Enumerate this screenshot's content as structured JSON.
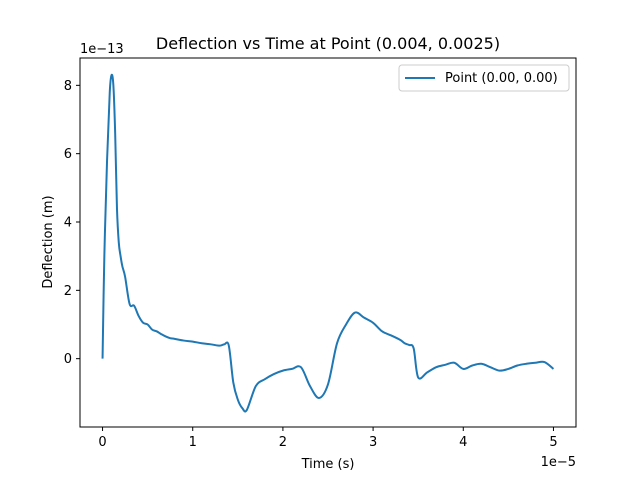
{
  "chart_data": {
    "type": "line",
    "title": "Deflection vs Time at Point (0.004, 0.0025)",
    "xlabel": "Time (s)",
    "ylabel": "Deflection (m)",
    "x_offset_text": "1e−5",
    "y_offset_text": "1e−13",
    "xlim": [
      -0.25,
      5.25
    ],
    "ylim": [
      -2.0,
      8.8
    ],
    "x_ticks": [
      0,
      1,
      2,
      3,
      4,
      5
    ],
    "x_tick_labels": [
      "0",
      "1",
      "2",
      "3",
      "4",
      "5"
    ],
    "y_ticks": [
      0,
      2,
      4,
      6,
      8
    ],
    "y_tick_labels": [
      "0",
      "2",
      "4",
      "6",
      "8"
    ],
    "grid": false,
    "legend_position": "top-right",
    "series": [
      {
        "name": "Point (0.00, 0.00)",
        "color": "#1f77b4",
        "x": [
          0,
          0.02,
          0.05,
          0.08,
          0.1,
          0.12,
          0.14,
          0.16,
          0.18,
          0.2,
          0.22,
          0.25,
          0.3,
          0.35,
          0.4,
          0.45,
          0.5,
          0.55,
          0.6,
          0.65,
          0.7,
          0.75,
          0.8,
          0.9,
          1.0,
          1.1,
          1.2,
          1.3,
          1.35,
          1.4,
          1.45,
          1.5,
          1.55,
          1.6,
          1.7,
          1.8,
          1.9,
          2.0,
          2.1,
          2.2,
          2.3,
          2.4,
          2.5,
          2.6,
          2.7,
          2.8,
          2.9,
          3.0,
          3.1,
          3.2,
          3.3,
          3.35,
          3.4,
          3.45,
          3.5,
          3.6,
          3.7,
          3.8,
          3.9,
          4.0,
          4.1,
          4.2,
          4.3,
          4.4,
          4.5,
          4.6,
          4.7,
          4.8,
          4.9,
          5.0
        ],
        "y": [
          0.0,
          3.0,
          5.8,
          7.8,
          8.3,
          8.0,
          6.6,
          4.4,
          3.4,
          3.0,
          2.7,
          2.4,
          1.6,
          1.55,
          1.25,
          1.05,
          1.0,
          0.85,
          0.8,
          0.72,
          0.65,
          0.6,
          0.58,
          0.53,
          0.5,
          0.45,
          0.42,
          0.38,
          0.42,
          0.38,
          -0.7,
          -1.2,
          -1.45,
          -1.5,
          -0.8,
          -0.6,
          -0.45,
          -0.35,
          -0.3,
          -0.25,
          -0.8,
          -1.15,
          -0.75,
          0.45,
          1.0,
          1.35,
          1.2,
          1.05,
          0.8,
          0.68,
          0.55,
          0.45,
          0.4,
          0.3,
          -0.55,
          -0.4,
          -0.25,
          -0.18,
          -0.12,
          -0.3,
          -0.2,
          -0.15,
          -0.25,
          -0.35,
          -0.3,
          -0.2,
          -0.15,
          -0.12,
          -0.1,
          -0.3
        ]
      }
    ]
  }
}
